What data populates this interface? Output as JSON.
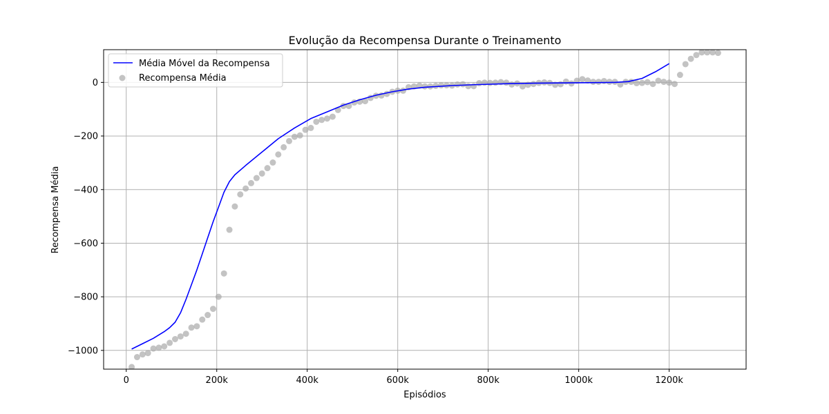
{
  "chart_data": {
    "type": "line+scatter",
    "title": "Evolução da Recompensa Durante o Treinamento",
    "xlabel": "Episódios",
    "ylabel": "Recompensa Média",
    "xlim": [
      -50000,
      1370000
    ],
    "ylim": [
      -1070,
      122
    ],
    "xticks": [
      0,
      200000,
      400000,
      600000,
      800000,
      1000000,
      1200000
    ],
    "xtick_labels": [
      "0",
      "200k",
      "400k",
      "600k",
      "800k",
      "1000k",
      "1200k"
    ],
    "yticks": [
      -1000,
      -800,
      -600,
      -400,
      -200,
      0
    ],
    "ytick_labels": [
      "−1000",
      "−800",
      "−600",
      "−400",
      "−200",
      "0"
    ],
    "grid": true,
    "legend_position": "upper-left",
    "series": [
      {
        "name": "Média Móvel da Recompensa",
        "kind": "line",
        "color": "#0000ff",
        "x": [
          12000,
          36000,
          60000,
          84000,
          96000,
          108000,
          120000,
          132000,
          144000,
          156000,
          168000,
          180000,
          192000,
          204000,
          216000,
          228000,
          240000,
          264000,
          300000,
          336000,
          372000,
          408000,
          444000,
          480000,
          516000,
          552000,
          588000,
          624000,
          660000,
          720000,
          780000,
          840000,
          900000,
          960000,
          1020000,
          1080000,
          1110000,
          1140000,
          1170000,
          1200000
        ],
        "y": [
          -995,
          -975,
          -955,
          -930,
          -915,
          -895,
          -860,
          -810,
          -755,
          -700,
          -640,
          -580,
          -520,
          -465,
          -410,
          -370,
          -345,
          -310,
          -260,
          -210,
          -170,
          -135,
          -110,
          -85,
          -65,
          -48,
          -35,
          -25,
          -18,
          -12,
          -8,
          -5,
          -3,
          -2,
          -1,
          0,
          3,
          15,
          40,
          70
        ]
      },
      {
        "name": "Recompensa Média",
        "kind": "scatter",
        "color": "#a9a9a9",
        "x": [
          12000,
          24000,
          36000,
          48000,
          60000,
          72000,
          84000,
          96000,
          108000,
          120000,
          132000,
          144000,
          156000,
          168000,
          180000,
          192000,
          204000,
          216000,
          228000,
          240000,
          252000,
          264000,
          276000,
          288000,
          300000,
          312000,
          324000,
          336000,
          348000,
          360000,
          372000,
          384000,
          396000,
          408000,
          420000,
          432000,
          444000,
          456000,
          468000,
          480000,
          492000,
          504000,
          516000,
          528000,
          540000,
          552000,
          564000,
          576000,
          588000,
          600000,
          612000,
          624000,
          636000,
          648000,
          660000,
          672000,
          684000,
          696000,
          708000,
          720000,
          732000,
          744000,
          756000,
          768000,
          780000,
          792000,
          804000,
          816000,
          828000,
          840000,
          852000,
          864000,
          876000,
          888000,
          900000,
          912000,
          924000,
          936000,
          948000,
          960000,
          972000,
          984000,
          996000,
          1008000,
          1020000,
          1032000,
          1044000,
          1056000,
          1068000,
          1080000,
          1092000,
          1104000,
          1116000,
          1128000,
          1140000,
          1152000,
          1164000,
          1176000,
          1188000,
          1200000,
          1212000,
          1224000,
          1236000,
          1248000,
          1260000,
          1272000,
          1284000,
          1296000,
          1308000
        ],
        "y": [
          -1062,
          -1025,
          -1015,
          -1010,
          -993,
          -990,
          -985,
          -972,
          -958,
          -948,
          -938,
          -915,
          -910,
          -885,
          -868,
          -845,
          -800,
          -713,
          -550,
          -463,
          -418,
          -396,
          -376,
          -357,
          -340,
          -320,
          -299,
          -269,
          -242,
          -219,
          -203,
          -198,
          -177,
          -170,
          -147,
          -140,
          -135,
          -128,
          -103,
          -88,
          -88,
          -75,
          -72,
          -70,
          -58,
          -50,
          -49,
          -43,
          -35,
          -31,
          -31,
          -18,
          -15,
          -12,
          -15,
          -15,
          -13,
          -11,
          -11,
          -12,
          -8,
          -7,
          -14,
          -14,
          -3,
          -1,
          -2,
          -1,
          1,
          -1,
          -8,
          -4,
          -15,
          -9,
          -6,
          -2,
          0,
          -2,
          -9,
          -7,
          3,
          -4,
          6,
          12,
          7,
          2,
          2,
          5,
          2,
          2,
          -8,
          2,
          2,
          -3,
          -2,
          1,
          -6,
          6,
          2,
          -1,
          -6,
          28,
          68,
          88,
          102,
          112,
          112,
          112,
          110
        ]
      }
    ]
  }
}
